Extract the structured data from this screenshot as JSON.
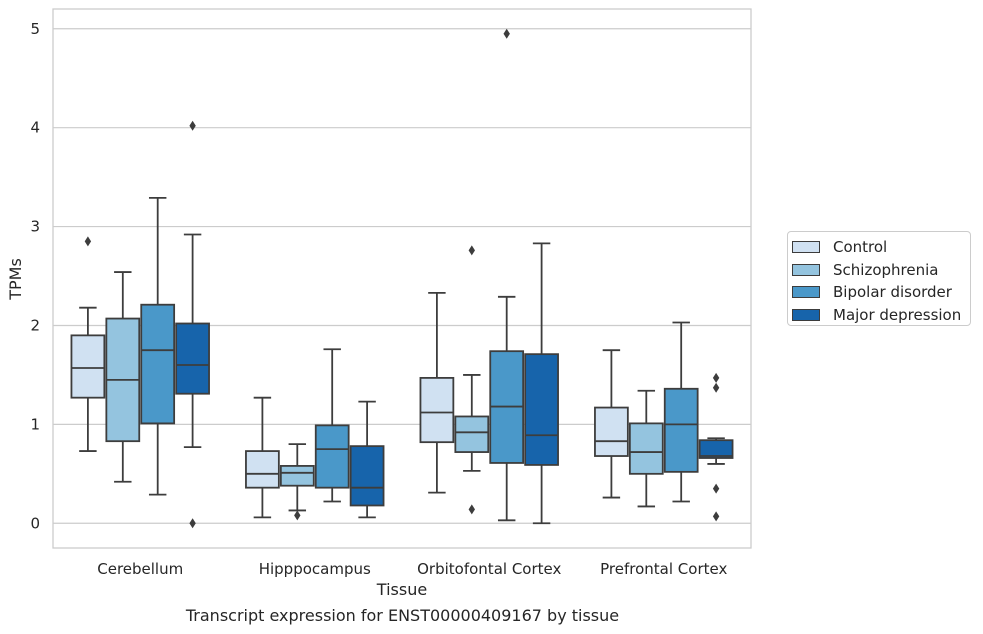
{
  "chart_data": {
    "type": "box",
    "title": "",
    "xlabel": "Tissue",
    "ylabel": "TPMs",
    "caption": "Transcript expression for ENST00000409167 by tissue",
    "ylim": [
      -0.25,
      5.2
    ],
    "yticks": [
      "0",
      "1",
      "2",
      "3",
      "4",
      "5"
    ],
    "grid": "horizontal",
    "legend_position": "right",
    "categories": [
      "Cerebellum",
      "Hipppocampus",
      "Orbitofontal Cortex",
      "Prefrontal Cortex"
    ],
    "series": [
      {
        "name": "Control",
        "color": "#d0e1f2",
        "boxes": [
          {
            "q1": 1.27,
            "median": 1.57,
            "q3": 1.9,
            "whisker_low": 0.73,
            "whisker_high": 2.18,
            "outliers": [
              2.85
            ]
          },
          {
            "q1": 0.36,
            "median": 0.5,
            "q3": 0.73,
            "whisker_low": 0.06,
            "whisker_high": 1.27,
            "outliers": []
          },
          {
            "q1": 0.82,
            "median": 1.12,
            "q3": 1.47,
            "whisker_low": 0.31,
            "whisker_high": 2.33,
            "outliers": []
          },
          {
            "q1": 0.68,
            "median": 0.83,
            "q3": 1.17,
            "whisker_low": 0.26,
            "whisker_high": 1.75,
            "outliers": []
          }
        ]
      },
      {
        "name": "Schizophrenia",
        "color": "#94c4df",
        "boxes": [
          {
            "q1": 0.83,
            "median": 1.45,
            "q3": 2.07,
            "whisker_low": 0.42,
            "whisker_high": 2.54,
            "outliers": []
          },
          {
            "q1": 0.38,
            "median": 0.51,
            "q3": 0.58,
            "whisker_low": 0.13,
            "whisker_high": 0.8,
            "outliers": [
              0.08
            ]
          },
          {
            "q1": 0.72,
            "median": 0.92,
            "q3": 1.08,
            "whisker_low": 0.53,
            "whisker_high": 1.5,
            "outliers": [
              2.76,
              0.14
            ]
          },
          {
            "q1": 0.5,
            "median": 0.72,
            "q3": 1.01,
            "whisker_low": 0.17,
            "whisker_high": 1.34,
            "outliers": []
          }
        ]
      },
      {
        "name": "Bipolar disorder",
        "color": "#4a98c9",
        "boxes": [
          {
            "q1": 1.01,
            "median": 1.75,
            "q3": 2.21,
            "whisker_low": 0.29,
            "whisker_high": 3.29,
            "outliers": []
          },
          {
            "q1": 0.36,
            "median": 0.75,
            "q3": 0.99,
            "whisker_low": 0.22,
            "whisker_high": 1.76,
            "outliers": []
          },
          {
            "q1": 0.61,
            "median": 1.18,
            "q3": 1.74,
            "whisker_low": 0.03,
            "whisker_high": 2.29,
            "outliers": [
              4.95
            ]
          },
          {
            "q1": 0.52,
            "median": 1.0,
            "q3": 1.36,
            "whisker_low": 0.22,
            "whisker_high": 2.03,
            "outliers": []
          }
        ]
      },
      {
        "name": "Major depression",
        "color": "#1764ab",
        "boxes": [
          {
            "q1": 1.31,
            "median": 1.6,
            "q3": 2.02,
            "whisker_low": 0.77,
            "whisker_high": 2.92,
            "outliers": [
              4.02,
              0.0
            ]
          },
          {
            "q1": 0.18,
            "median": 0.36,
            "q3": 0.78,
            "whisker_low": 0.06,
            "whisker_high": 1.23,
            "outliers": []
          },
          {
            "q1": 0.59,
            "median": 0.89,
            "q3": 1.71,
            "whisker_low": 0.0,
            "whisker_high": 2.83,
            "outliers": []
          },
          {
            "q1": 0.66,
            "median": 0.68,
            "q3": 0.84,
            "whisker_low": 0.6,
            "whisker_high": 0.86,
            "outliers": [
              1.47,
              1.37,
              0.35,
              0.07
            ]
          }
        ]
      }
    ]
  }
}
